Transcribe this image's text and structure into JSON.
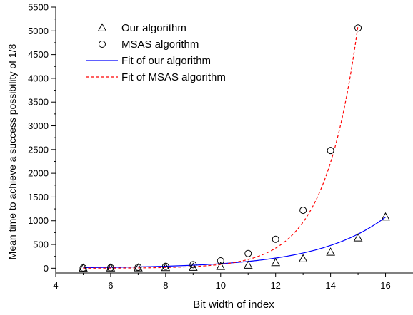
{
  "chart_data": {
    "type": "scatter",
    "xlabel": "Bit width of index",
    "ylabel": "Mean time to achieve a success possibility of 1/8",
    "xlim": [
      4,
      17
    ],
    "ylim": [
      -100,
      5500
    ],
    "xticks": [
      4,
      6,
      8,
      10,
      12,
      14,
      16
    ],
    "yticks": [
      0,
      500,
      1000,
      1500,
      2000,
      2500,
      3000,
      3500,
      4000,
      4500,
      5000,
      5500
    ],
    "legend_position": "top-left",
    "series": [
      {
        "name": "Our algorithm",
        "kind": "points",
        "marker": "triangle",
        "color": "#000000",
        "x": [
          5,
          6,
          7,
          8,
          9,
          10,
          11,
          12,
          13,
          14,
          15,
          16
        ],
        "y": [
          5,
          7,
          9,
          14,
          20,
          40,
          65,
          120,
          200,
          340,
          640,
          1080
        ]
      },
      {
        "name": "MSAS algorithm",
        "kind": "points",
        "marker": "circle",
        "color": "#000000",
        "x": [
          5,
          6,
          7,
          8,
          9,
          10,
          11,
          12,
          13,
          14,
          15
        ],
        "y": [
          5,
          10,
          20,
          40,
          75,
          155,
          310,
          610,
          1220,
          2480,
          5060
        ]
      },
      {
        "name": "Fit of our algorithm",
        "kind": "line",
        "dash": "solid",
        "color": "#0000ff",
        "fit_a": 1.69,
        "fit_b": 0.4035,
        "x_range": [
          5,
          16
        ]
      },
      {
        "name": "Fit of MSAS algorithm",
        "kind": "line",
        "dash": "dashed",
        "color": "#ff0000",
        "fit_a": 0.0197,
        "fit_b": 0.8312,
        "x_range": [
          5,
          15
        ]
      }
    ]
  }
}
